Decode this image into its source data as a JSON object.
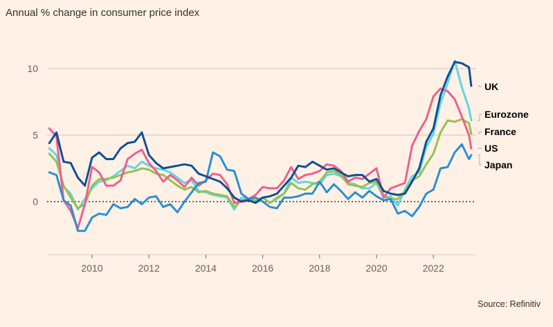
{
  "chart_data": {
    "type": "line",
    "title": "Annual % change in consumer price index",
    "source": "Source: Refinitiv",
    "xlabel": "",
    "ylabel": "",
    "xlim": [
      2008.4,
      2023.5
    ],
    "ylim": [
      -4,
      12
    ],
    "grid": true,
    "y_ticks": [
      0,
      5,
      10
    ],
    "x_ticks": [
      2010,
      2012,
      2014,
      2016,
      2018,
      2020,
      2022
    ],
    "legend_placement": "right (direct labels)",
    "x": [
      2008.5,
      2008.75,
      2009,
      2009.25,
      2009.5,
      2009.75,
      2010,
      2010.25,
      2010.5,
      2010.75,
      2011,
      2011.25,
      2011.5,
      2011.75,
      2012,
      2012.25,
      2012.5,
      2012.75,
      2013,
      2013.25,
      2013.5,
      2013.75,
      2014,
      2014.25,
      2014.5,
      2014.75,
      2015,
      2015.25,
      2015.5,
      2015.75,
      2016,
      2016.25,
      2016.5,
      2016.75,
      2017,
      2017.25,
      2017.5,
      2017.75,
      2018,
      2018.25,
      2018.5,
      2018.75,
      2019,
      2019.25,
      2019.5,
      2019.75,
      2020,
      2020.25,
      2020.5,
      2020.75,
      2021,
      2021.25,
      2021.5,
      2021.75,
      2022,
      2022.25,
      2022.5,
      2022.75,
      2023,
      2023.25,
      2023.33
    ],
    "series": [
      {
        "name": "Eurozone",
        "color": "#5fd6e6",
        "values": [
          4.0,
          3.5,
          1.1,
          0.6,
          -0.6,
          0.2,
          1.0,
          1.5,
          1.6,
          1.9,
          2.3,
          2.7,
          2.5,
          3.0,
          2.7,
          2.5,
          2.4,
          2.2,
          1.8,
          1.4,
          1.6,
          0.8,
          0.7,
          0.5,
          0.4,
          0.3,
          -0.6,
          0.3,
          0.2,
          0.1,
          0.3,
          -0.1,
          0.2,
          0.6,
          1.8,
          1.4,
          1.5,
          1.4,
          1.3,
          2.0,
          2.1,
          1.9,
          1.4,
          1.3,
          1.0,
          1.0,
          1.4,
          0.3,
          0.4,
          -0.3,
          0.9,
          1.9,
          2.2,
          4.1,
          5.1,
          7.4,
          8.9,
          10.6,
          8.6,
          7.0,
          6.1
        ]
      },
      {
        "name": "France",
        "color": "#96c14f",
        "values": [
          3.6,
          3.0,
          1.2,
          0.3,
          -0.5,
          -0.2,
          1.2,
          1.7,
          1.7,
          1.8,
          2.0,
          2.2,
          2.3,
          2.5,
          2.4,
          2.1,
          2.0,
          1.6,
          1.2,
          0.9,
          1.1,
          0.7,
          0.8,
          0.6,
          0.5,
          0.4,
          -0.4,
          0.1,
          0.2,
          0.1,
          0.3,
          -0.1,
          0.3,
          0.6,
          1.4,
          1.0,
          0.9,
          1.3,
          1.5,
          2.2,
          2.3,
          2.0,
          1.3,
          1.2,
          1.1,
          1.4,
          1.5,
          0.4,
          0.2,
          0.2,
          0.8,
          1.6,
          1.9,
          2.8,
          3.6,
          5.2,
          6.1,
          6.0,
          6.2,
          5.9,
          5.1
        ]
      },
      {
        "name": "US",
        "color": "#ee5f8c",
        "values": [
          5.5,
          4.9,
          0.1,
          -0.7,
          -2.0,
          -0.2,
          2.6,
          2.2,
          1.2,
          1.2,
          1.6,
          3.2,
          3.6,
          3.9,
          2.9,
          2.3,
          1.5,
          2.0,
          1.6,
          1.1,
          1.8,
          1.2,
          1.6,
          2.1,
          2.0,
          1.3,
          -0.1,
          0.0,
          0.2,
          0.5,
          1.1,
          1.0,
          1.0,
          1.6,
          2.6,
          1.7,
          2.0,
          2.1,
          2.3,
          2.8,
          2.7,
          2.3,
          1.5,
          1.8,
          1.7,
          2.1,
          2.5,
          0.3,
          1.0,
          1.2,
          1.4,
          4.2,
          5.3,
          6.2,
          7.9,
          8.5,
          8.3,
          7.7,
          6.4,
          5.0,
          4.0
        ]
      },
      {
        "name": "Japan",
        "color": "#2a8fd2",
        "values": [
          2.2,
          2.0,
          0.1,
          -0.3,
          -2.2,
          -2.2,
          -1.2,
          -0.9,
          -1.0,
          -0.2,
          -0.5,
          -0.4,
          0.2,
          -0.2,
          0.3,
          0.4,
          -0.4,
          -0.2,
          -0.8,
          0.0,
          0.7,
          1.4,
          1.5,
          3.7,
          3.4,
          2.4,
          2.3,
          0.6,
          0.2,
          0.3,
          0.0,
          -0.4,
          -0.5,
          0.3,
          0.3,
          0.4,
          0.6,
          0.6,
          1.5,
          0.7,
          1.3,
          0.8,
          0.2,
          0.7,
          0.3,
          0.8,
          0.4,
          0.1,
          0.2,
          -0.9,
          -0.7,
          -1.1,
          -0.4,
          0.6,
          0.9,
          2.5,
          2.6,
          3.7,
          4.3,
          3.2,
          3.5
        ]
      },
      {
        "name": "UK",
        "color": "#0f4f91",
        "values": [
          4.4,
          5.2,
          3.0,
          2.9,
          1.8,
          1.2,
          3.3,
          3.7,
          3.2,
          3.2,
          4.0,
          4.4,
          4.5,
          5.2,
          3.5,
          2.9,
          2.5,
          2.6,
          2.7,
          2.8,
          2.7,
          2.1,
          1.9,
          1.7,
          1.5,
          1.0,
          0.3,
          0.0,
          0.1,
          -0.1,
          0.3,
          0.4,
          0.6,
          1.2,
          1.8,
          2.7,
          2.6,
          3.0,
          2.7,
          2.4,
          2.5,
          2.2,
          1.9,
          2.0,
          2.0,
          1.5,
          1.7,
          0.8,
          0.6,
          0.5,
          0.6,
          1.5,
          2.5,
          4.5,
          5.5,
          8.0,
          9.4,
          10.5,
          10.4,
          10.1,
          8.7
        ]
      }
    ],
    "legend_order": [
      "UK",
      "Eurozone",
      "France",
      "US",
      "Japan"
    ]
  }
}
